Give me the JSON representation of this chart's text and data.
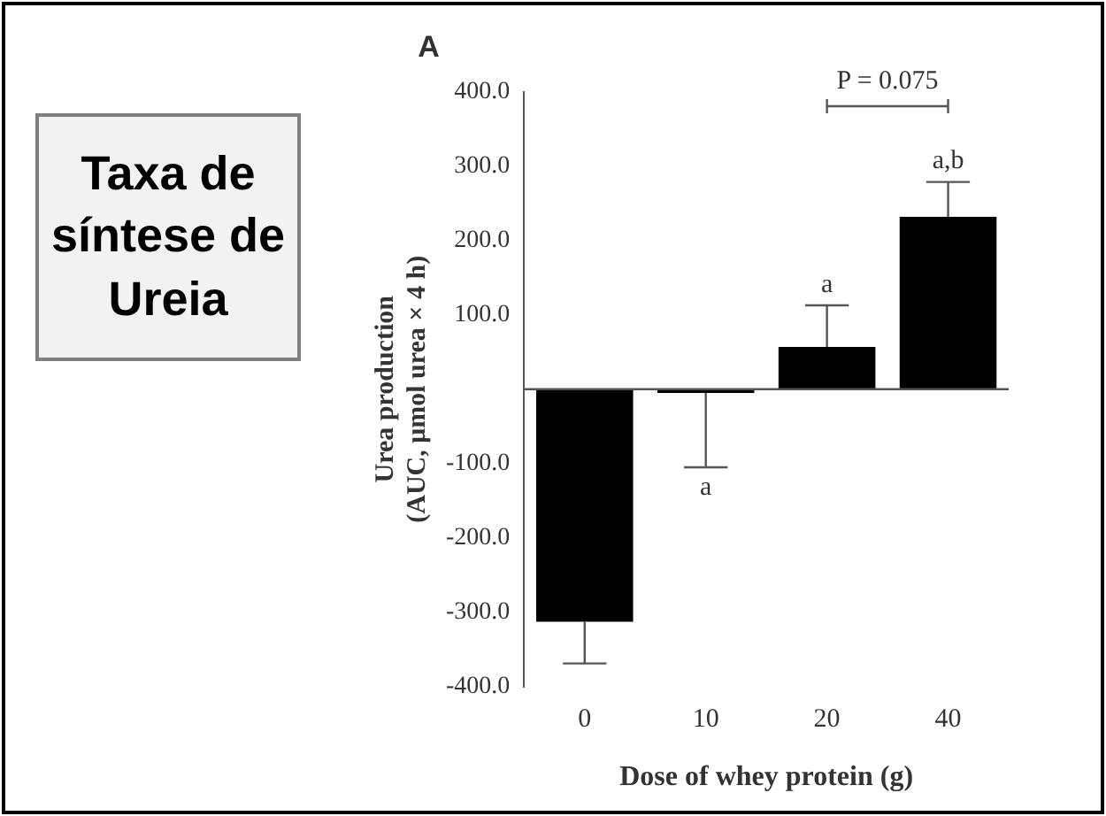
{
  "chart_data": {
    "type": "bar",
    "title": "Taxa de síntese de Ureia",
    "xlabel": "Dose of whey protein (g)",
    "ylabel": "Urea production\n(AUC, μmol urea × 4 h)",
    "categories": [
      "0",
      "10",
      "20",
      "40"
    ],
    "values": [
      -313,
      -5,
      57,
      232
    ],
    "errors": [
      56,
      100,
      56,
      47
    ],
    "color": "#000000",
    "ylim": [
      -400,
      400
    ],
    "yticks": [
      {
        "value": -400,
        "label": "-400.0"
      },
      {
        "value": -300,
        "label": "-300.0"
      },
      {
        "value": -200,
        "label": "-200.0"
      },
      {
        "value": -100,
        "label": "-100.0"
      },
      {
        "value": 100,
        "label": "100.0"
      },
      {
        "value": 200,
        "label": "200.0"
      },
      {
        "value": 300,
        "label": "300.0"
      },
      {
        "value": 400,
        "label": "400.0"
      }
    ],
    "annotations": [
      "A",
      "P = 0.075",
      {
        "text": "a",
        "x": "10",
        "y": -105
      },
      {
        "text": "a",
        "x": "20",
        "y": 113
      },
      {
        "text": "a,b",
        "x": "40",
        "y": 279
      }
    ],
    "grid": false,
    "legend": false
  }
}
